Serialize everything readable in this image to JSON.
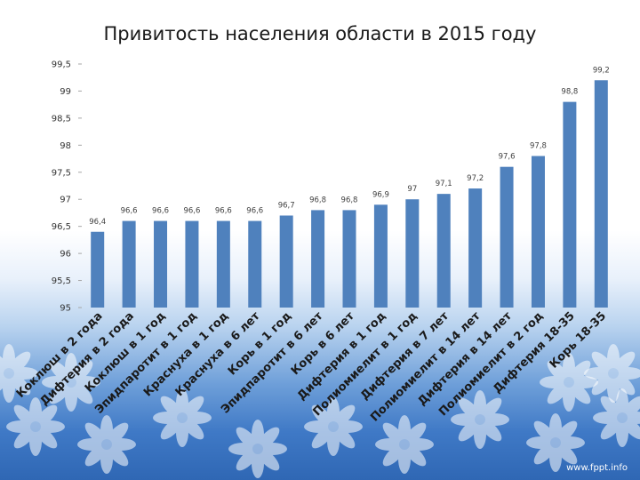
{
  "slide": {
    "watermark": "www.fppt.info"
  },
  "chart_data": {
    "type": "bar",
    "title": "Привитость населения области в 2015 году",
    "categories": [
      "Коклюш в 2 года",
      "Дифтерия в 2 года",
      "Коклюш в 1 год",
      "Эпидпаротит в 1 год",
      "Краснуха в 1 год",
      "Краснуха в 6 лет",
      "Корь в 1 год",
      "Эпидпаротит в 6 лет",
      "Корь в 6 лет",
      "Дифтерия в 1 год",
      "Полиомиелит  в 1 год",
      "Дифтерия в 7 лет",
      "Полиомиелит в 14 лет",
      "Дифтерия в 14 лет",
      "Полиомиелит в 2 год",
      "Дифтерия 18-35",
      "Корь 18-35"
    ],
    "values": [
      96.4,
      96.6,
      96.6,
      96.6,
      96.6,
      96.6,
      96.7,
      96.8,
      96.8,
      96.9,
      97,
      97.1,
      97.2,
      97.6,
      97.8,
      98.8,
      99.2
    ],
    "data_labels": [
      "96,4",
      "96,6",
      "96,6",
      "96,6",
      "96,6",
      "96,6",
      "96,7",
      "96,8",
      "96,8",
      "96,9",
      "97",
      "97,1",
      "97,2",
      "97,6",
      "97,8",
      "98,8",
      "99,2"
    ],
    "ylim": [
      95,
      99.5
    ],
    "yticks": [
      95,
      95.5,
      96,
      96.5,
      97,
      97.5,
      98,
      98.5,
      99,
      99.5
    ],
    "ytick_labels": [
      "95",
      "95,5",
      "96",
      "96,5",
      "97",
      "97,5",
      "98",
      "98,5",
      "99",
      "99,5"
    ],
    "xlabel": "",
    "ylabel": "",
    "bar_color": "#4f81bd",
    "grid": false,
    "legend": "none"
  }
}
